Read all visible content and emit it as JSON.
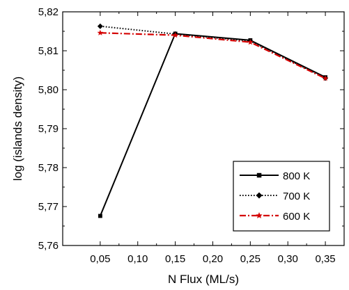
{
  "chart_data": {
    "type": "line",
    "xlabel": "N Flux (ML/s)",
    "ylabel": "log (islands density)",
    "xlim": [
      0.0,
      0.375
    ],
    "ylim": [
      5.76,
      5.82
    ],
    "x_ticks": [
      0.05,
      0.1,
      0.15,
      0.2,
      0.25,
      0.3,
      0.35
    ],
    "x_tick_labels": [
      "0,05",
      "0,10",
      "0,15",
      "0,20",
      "0,25",
      "0,30",
      "0,35"
    ],
    "y_ticks": [
      5.76,
      5.77,
      5.78,
      5.79,
      5.8,
      5.81,
      5.82
    ],
    "y_tick_labels": [
      "5,76",
      "5,77",
      "5,78",
      "5,79",
      "5,80",
      "5,81",
      "5,82"
    ],
    "x": [
      0.05,
      0.15,
      0.25,
      0.35
    ],
    "series": [
      {
        "name": "800 K",
        "values": [
          5.7676,
          5.8144,
          5.8127,
          5.8032
        ],
        "color": "#000000",
        "line_style": "solid",
        "marker": "square"
      },
      {
        "name": "700 K",
        "values": [
          5.8163,
          5.8143,
          5.8125,
          5.803
        ],
        "color": "#000000",
        "line_style": "dotted",
        "marker": "diamond"
      },
      {
        "name": "600 K",
        "values": [
          5.8146,
          5.814,
          5.8122,
          5.8029
        ],
        "color": "#d40000",
        "line_style": "dash-dot",
        "marker": "star"
      }
    ],
    "legend_position": "bottom-right",
    "grid": false
  }
}
